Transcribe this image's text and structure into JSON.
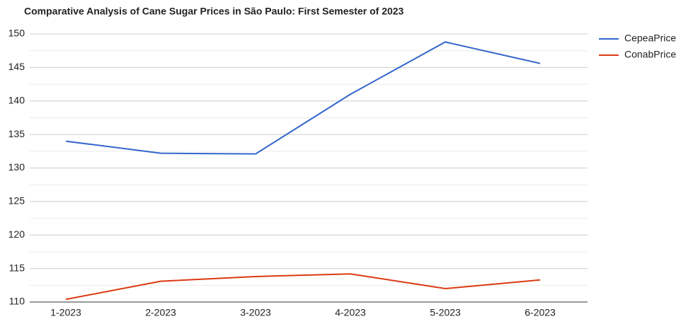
{
  "chart_data": {
    "type": "line",
    "title": "Comparative Analysis of Cane Sugar Prices in São Paulo: First Semester of 2023",
    "categories": [
      "1-2023",
      "2-2023",
      "3-2023",
      "4-2023",
      "5-2023",
      "6-2023"
    ],
    "series": [
      {
        "name": "CepeaPrice",
        "color": "#3366cc",
        "values": [
          134,
          132.2,
          132.1,
          141,
          148.8,
          145.6
        ]
      },
      {
        "name": "ConabPrice",
        "color": "#dc3912",
        "values": [
          110.4,
          113.1,
          113.8,
          114.2,
          112,
          113.3
        ]
      }
    ],
    "ylim": [
      110,
      150
    ],
    "yticks": [
      110,
      115,
      120,
      125,
      130,
      135,
      140,
      145,
      150
    ],
    "grid": true,
    "legend": "right"
  }
}
